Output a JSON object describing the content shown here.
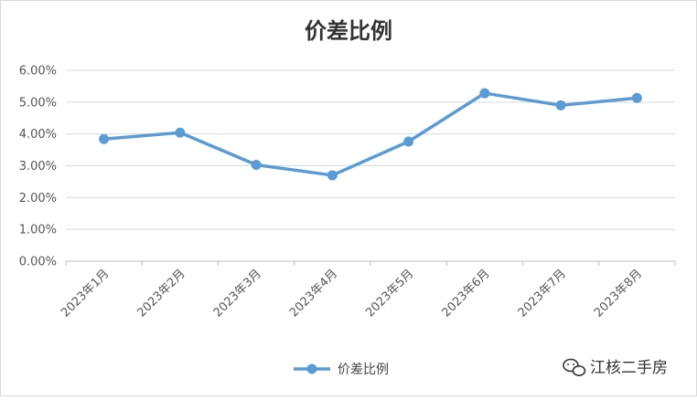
{
  "chart_data": {
    "type": "line",
    "title": "价差比例",
    "categories": [
      "2023年1月",
      "2023年2月",
      "2023年3月",
      "2023年4月",
      "2023年5月",
      "2023年6月",
      "2023年7月",
      "2023年8月"
    ],
    "series": [
      {
        "name": "价差比例",
        "values": [
          3.84,
          4.04,
          3.03,
          2.7,
          3.76,
          5.28,
          4.9,
          5.13
        ]
      }
    ],
    "ylim": [
      0,
      6
    ],
    "yticks": [
      "0.00%",
      "1.00%",
      "2.00%",
      "3.00%",
      "4.00%",
      "5.00%",
      "6.00%"
    ],
    "ylabel": "",
    "xlabel": "",
    "grid": true,
    "legend": "bottom",
    "color": "#5b9bd5"
  },
  "watermark": {
    "text": "江核二手房",
    "icon": "wechat-icon"
  }
}
